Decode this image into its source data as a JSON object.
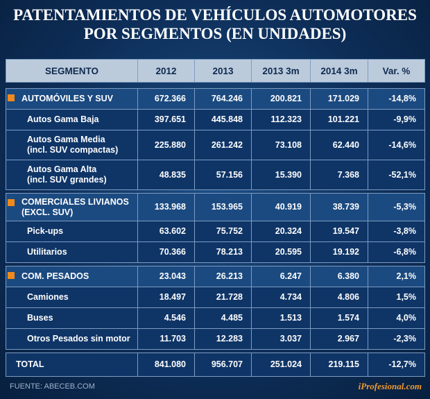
{
  "title": "PATENTAMIENTOS DE VEHÍCULOS AUTOMOTORES\nPOR SEGMENTOS (EN UNIDADES)",
  "table": {
    "columns": [
      "SEGMENTO",
      "2012",
      "2013",
      "2013 3m",
      "2014 3m",
      "Var. %"
    ],
    "groups": [
      {
        "row": [
          "AUTOMÓVILES Y SUV",
          "672.366",
          "764.246",
          "200.821",
          "171.029",
          "-14,8%"
        ],
        "rows": [
          [
            "Autos Gama Baja",
            "397.651",
            "445.848",
            "112.323",
            "101.221",
            "-9,9%"
          ],
          [
            "Autos Gama Media\n(incl. SUV compactas)",
            "225.880",
            "261.242",
            "73.108",
            "62.440",
            "-14,6%"
          ],
          [
            "Autos Gama Alta\n(incl. SUV grandes)",
            "48.835",
            "57.156",
            "15.390",
            "7.368",
            "-52,1%"
          ]
        ]
      },
      {
        "row": [
          "COMERCIALES LIVIANOS\n(EXCL. SUV)",
          "133.968",
          "153.965",
          "40.919",
          "38.739",
          "-5,3%"
        ],
        "rows": [
          [
            "Pick-ups",
            "63.602",
            "75.752",
            "20.324",
            "19.547",
            "-3,8%"
          ],
          [
            "Utilitarios",
            "70.366",
            "78.213",
            "20.595",
            "19.192",
            "-6,8%"
          ]
        ]
      },
      {
        "row": [
          "COM. PESADOS",
          "23.043",
          "26.213",
          "6.247",
          "6.380",
          "2,1%"
        ],
        "rows": [
          [
            "Camiones",
            "18.497",
            "21.728",
            "4.734",
            "4.806",
            "1,5%"
          ],
          [
            "Buses",
            "4.546",
            "4.485",
            "1.513",
            "1.574",
            "4,0%"
          ],
          [
            "Otros Pesados sin motor",
            "11.703",
            "12.283",
            "3.037",
            "2.967",
            "-2,3%"
          ]
        ]
      }
    ],
    "total": [
      "TOTAL",
      "841.080",
      "956.707",
      "251.024",
      "219.115",
      "-12,7%"
    ]
  },
  "footer": {
    "source": "FUENTE: ABECEB.COM",
    "brand": "iProfesional.com"
  }
}
